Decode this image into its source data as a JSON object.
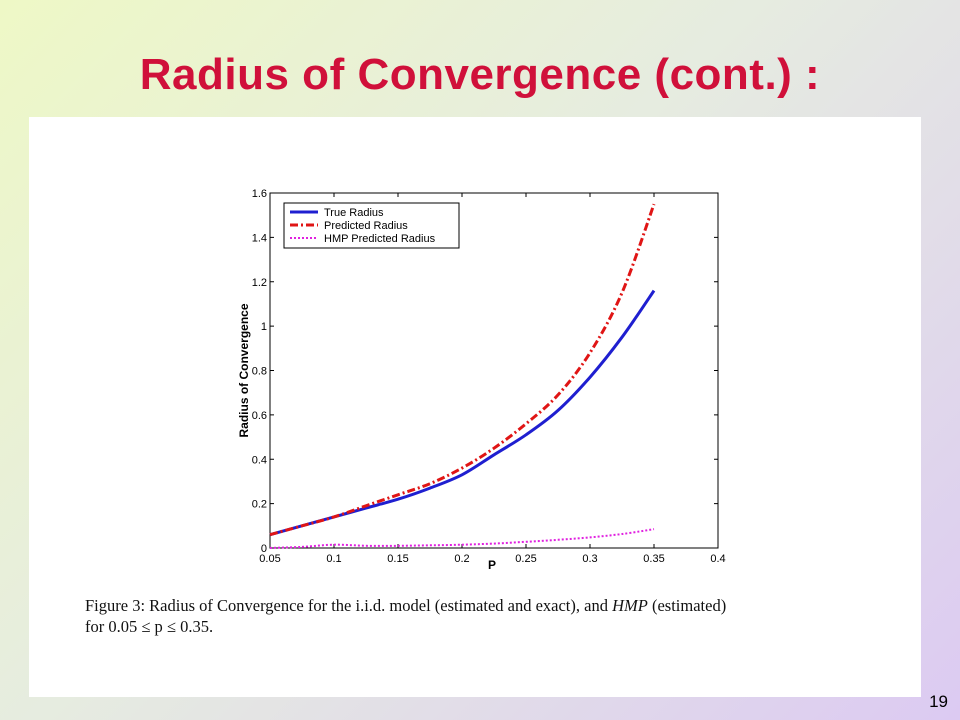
{
  "slide": {
    "title": "Radius of Convergence (cont.) :",
    "page_number": "19"
  },
  "caption": {
    "line1_a": "Figure 3:  Radius of Convergence for the i.i.d. model (estimated and exact), and ",
    "line1_em": "HMP",
    "line1_b": " (estimated)",
    "line2": "for 0.05 ≤ p ≤ 0.35."
  },
  "colors": {
    "title": "#d0103a",
    "true_radius": "#1f1fd0",
    "predicted_radius": "#e01515",
    "hmp_predicted_radius": "#e020e0"
  },
  "chart_data": {
    "type": "line",
    "title": "",
    "xlabel": "P",
    "ylabel": "Radius of Convergence",
    "xlim": [
      0.05,
      0.4
    ],
    "ylim": [
      0,
      1.6
    ],
    "xticks": [
      "0.05",
      "0.1",
      "0.15",
      "0.2",
      "0.25",
      "0.3",
      "0.35",
      "0.4"
    ],
    "yticks": [
      "0",
      "0.2",
      "0.4",
      "0.6",
      "0.8",
      "1",
      "1.2",
      "1.4",
      "1.6"
    ],
    "legend_position": "top-left",
    "grid": false,
    "x": [
      0.05,
      0.075,
      0.1,
      0.125,
      0.15,
      0.175,
      0.2,
      0.225,
      0.25,
      0.275,
      0.3,
      0.325,
      0.35
    ],
    "series": [
      {
        "name": "True Radius",
        "style": "solid",
        "values": [
          0.06,
          0.1,
          0.14,
          0.18,
          0.22,
          0.27,
          0.33,
          0.42,
          0.51,
          0.62,
          0.77,
          0.95,
          1.16
        ]
      },
      {
        "name": "Predicted Radius",
        "style": "dashdot",
        "values": [
          0.06,
          0.1,
          0.14,
          0.19,
          0.24,
          0.29,
          0.36,
          0.45,
          0.56,
          0.69,
          0.88,
          1.15,
          1.55
        ]
      },
      {
        "name": "HMP Predicted Radius",
        "style": "dotted",
        "values": [
          0.0,
          0.005,
          0.015,
          0.01,
          0.01,
          0.012,
          0.015,
          0.02,
          0.028,
          0.037,
          0.048,
          0.063,
          0.085
        ]
      }
    ]
  }
}
